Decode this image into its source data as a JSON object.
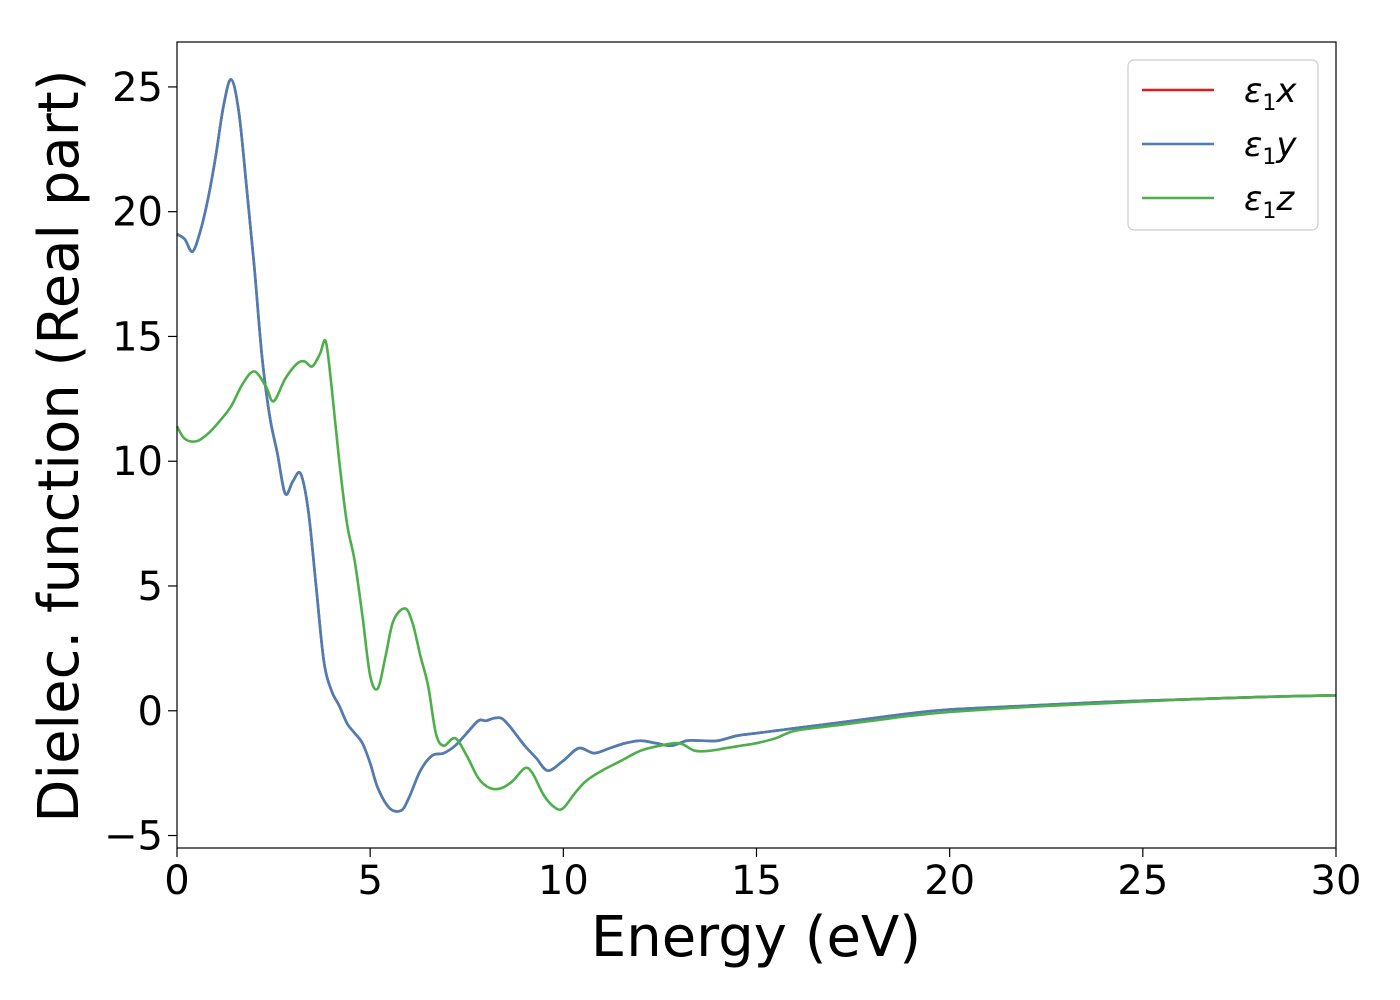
{
  "chart_data": {
    "type": "line",
    "xlabel": "Energy (eV)",
    "ylabel": "Dielec. function (Real part)",
    "xlim": [
      0,
      30
    ],
    "ylim": [
      -5.5,
      26.8
    ],
    "xticks": [
      0,
      5,
      10,
      15,
      20,
      25,
      30
    ],
    "xtick_labels": [
      "0",
      "5",
      "10",
      "15",
      "20",
      "25",
      "30"
    ],
    "yticks": [
      -5,
      0,
      5,
      10,
      15,
      20,
      25
    ],
    "ytick_labels": [
      "−5",
      "0",
      "5",
      "10",
      "15",
      "20",
      "25"
    ],
    "grid": false,
    "legend_position": "top-right",
    "series": [
      {
        "name": "ε1x",
        "name_main": "ε",
        "name_sub": "1",
        "name_tail": "x",
        "color": "#e41a1c",
        "x": [
          0,
          0.2,
          0.4,
          0.6,
          0.8,
          1.0,
          1.2,
          1.4,
          1.6,
          1.8,
          2.0,
          2.2,
          2.4,
          2.6,
          2.8,
          3.0,
          3.2,
          3.4,
          3.6,
          3.8,
          4.0,
          4.2,
          4.4,
          4.6,
          4.8,
          5.0,
          5.2,
          5.5,
          5.8,
          6.0,
          6.3,
          6.6,
          6.9,
          7.2,
          7.5,
          7.8,
          8.0,
          8.2,
          8.4,
          8.6,
          8.8,
          9.0,
          9.3,
          9.6,
          10.0,
          10.4,
          10.8,
          11.2,
          11.6,
          12.0,
          12.4,
          12.8,
          13.2,
          13.6,
          14.0,
          14.5,
          15.0,
          15.5,
          16.0,
          17.0,
          18.0,
          19.0,
          20.0,
          22.0,
          24.0,
          26.0,
          28.0,
          30.0
        ],
        "y": [
          19.1,
          18.9,
          18.4,
          19.2,
          20.5,
          22.2,
          24.2,
          25.3,
          24.0,
          21.0,
          17.8,
          14.2,
          11.8,
          10.3,
          8.7,
          9.2,
          9.5,
          8.0,
          5.0,
          2.0,
          0.8,
          0.2,
          -0.5,
          -0.9,
          -1.3,
          -2.1,
          -3.1,
          -3.9,
          -4.0,
          -3.5,
          -2.4,
          -1.8,
          -1.7,
          -1.4,
          -0.9,
          -0.4,
          -0.4,
          -0.3,
          -0.3,
          -0.6,
          -1.0,
          -1.4,
          -1.9,
          -2.4,
          -2.0,
          -1.5,
          -1.7,
          -1.5,
          -1.3,
          -1.2,
          -1.3,
          -1.4,
          -1.2,
          -1.2,
          -1.2,
          -1.0,
          -0.9,
          -0.8,
          -0.7,
          -0.5,
          -0.3,
          -0.1,
          0.05,
          0.2,
          0.35,
          0.45,
          0.55,
          0.62
        ]
      },
      {
        "name": "ε1y",
        "name_main": "ε",
        "name_sub": "1",
        "name_tail": "y",
        "color": "#4a7fb5",
        "x": [
          0,
          0.2,
          0.4,
          0.6,
          0.8,
          1.0,
          1.2,
          1.4,
          1.6,
          1.8,
          2.0,
          2.2,
          2.4,
          2.6,
          2.8,
          3.0,
          3.2,
          3.4,
          3.6,
          3.8,
          4.0,
          4.2,
          4.4,
          4.6,
          4.8,
          5.0,
          5.2,
          5.5,
          5.8,
          6.0,
          6.3,
          6.6,
          6.9,
          7.2,
          7.5,
          7.8,
          8.0,
          8.2,
          8.4,
          8.6,
          8.8,
          9.0,
          9.3,
          9.6,
          10.0,
          10.4,
          10.8,
          11.2,
          11.6,
          12.0,
          12.4,
          12.8,
          13.2,
          13.6,
          14.0,
          14.5,
          15.0,
          15.5,
          16.0,
          17.0,
          18.0,
          19.0,
          20.0,
          22.0,
          24.0,
          26.0,
          28.0,
          30.0
        ],
        "y": [
          19.1,
          18.9,
          18.4,
          19.2,
          20.5,
          22.2,
          24.2,
          25.3,
          24.0,
          21.0,
          17.8,
          14.2,
          11.8,
          10.3,
          8.7,
          9.2,
          9.5,
          8.0,
          5.0,
          2.0,
          0.8,
          0.2,
          -0.5,
          -0.9,
          -1.3,
          -2.1,
          -3.1,
          -3.9,
          -4.0,
          -3.5,
          -2.4,
          -1.8,
          -1.7,
          -1.4,
          -0.9,
          -0.4,
          -0.4,
          -0.3,
          -0.3,
          -0.6,
          -1.0,
          -1.4,
          -1.9,
          -2.4,
          -2.0,
          -1.5,
          -1.7,
          -1.5,
          -1.3,
          -1.2,
          -1.3,
          -1.4,
          -1.2,
          -1.2,
          -1.2,
          -1.0,
          -0.9,
          -0.8,
          -0.7,
          -0.5,
          -0.3,
          -0.1,
          0.05,
          0.2,
          0.35,
          0.45,
          0.55,
          0.62
        ]
      },
      {
        "name": "ε1z",
        "name_main": "ε",
        "name_sub": "1",
        "name_tail": "z",
        "color": "#4daf4a",
        "x": [
          0,
          0.2,
          0.5,
          0.8,
          1.1,
          1.4,
          1.7,
          2.0,
          2.3,
          2.5,
          2.8,
          3.1,
          3.3,
          3.5,
          3.7,
          3.85,
          4.0,
          4.2,
          4.4,
          4.6,
          4.8,
          5.0,
          5.2,
          5.4,
          5.6,
          5.9,
          6.1,
          6.3,
          6.5,
          6.7,
          6.9,
          7.2,
          7.5,
          7.8,
          8.1,
          8.4,
          8.7,
          9.0,
          9.2,
          9.5,
          9.8,
          10.0,
          10.3,
          10.6,
          11.0,
          11.5,
          12.0,
          12.5,
          13.0,
          13.4,
          13.8,
          14.2,
          14.6,
          15.0,
          15.5,
          16.0,
          17.0,
          18.0,
          19.0,
          20.0,
          22.0,
          24.0,
          26.0,
          28.0,
          30.0
        ],
        "y": [
          11.4,
          10.9,
          10.8,
          11.1,
          11.6,
          12.2,
          13.1,
          13.6,
          13.0,
          12.4,
          13.3,
          13.9,
          14.0,
          13.8,
          14.3,
          14.8,
          13.0,
          10.0,
          7.5,
          6.0,
          3.8,
          1.4,
          0.9,
          2.2,
          3.6,
          4.1,
          3.5,
          2.2,
          1.0,
          -0.9,
          -1.4,
          -1.1,
          -1.8,
          -2.7,
          -3.1,
          -3.1,
          -2.8,
          -2.3,
          -2.5,
          -3.4,
          -3.9,
          -3.9,
          -3.3,
          -2.8,
          -2.4,
          -2.0,
          -1.6,
          -1.4,
          -1.3,
          -1.6,
          -1.6,
          -1.5,
          -1.4,
          -1.3,
          -1.1,
          -0.8,
          -0.6,
          -0.4,
          -0.2,
          -0.05,
          0.15,
          0.3,
          0.45,
          0.55,
          0.62
        ]
      }
    ]
  }
}
